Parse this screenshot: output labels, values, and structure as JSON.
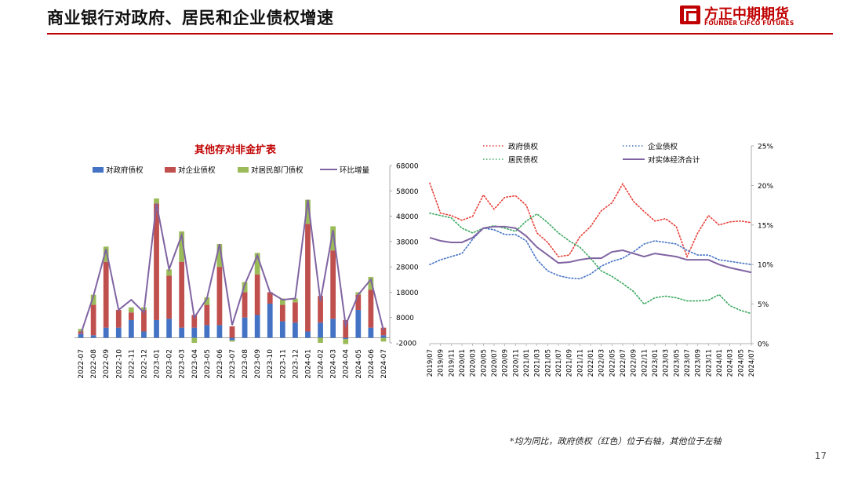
{
  "page": {
    "title": "商业银行对政府、居民和企业债权增速",
    "logo_cn": "方正中期期货",
    "logo_en": "FOUNDER CIFCO FUTURES",
    "footnote": "*均为同比，政府债权（红色）位于右轴，其他位于左轴",
    "page_number": "17"
  },
  "colors": {
    "brand": "#c00000",
    "blue": "#4472c4",
    "red": "#c0504d",
    "green": "#9bbb59",
    "purple": "#8064a2"
  },
  "chart_data": [
    {
      "type": "bar",
      "title": "其他存对非金扩表",
      "stacked": true,
      "legend_position": "top",
      "categories": [
        "2022-07",
        "2022-08",
        "2022-09",
        "2022-10",
        "2022-11",
        "2022-12",
        "2023-01",
        "2023-02",
        "2023-03",
        "2023-04",
        "2023-05",
        "2023-06",
        "2023-07",
        "2023-08",
        "2023-09",
        "2023-10",
        "2023-11",
        "2023-12",
        "2024-01",
        "2024-02",
        "2024-03",
        "2024-04",
        "2024-05",
        "2024-06",
        "2024-07"
      ],
      "ylim": [
        -2000,
        68000
      ],
      "yticks": [
        -2000,
        8000,
        18000,
        28000,
        38000,
        48000,
        58000,
        68000
      ],
      "series": [
        {
          "name": "对政府债权",
          "kind": "bar",
          "color": "#4472c4",
          "values": [
            1500,
            1000,
            4000,
            4000,
            7000,
            2500,
            7000,
            7500,
            4000,
            4000,
            5000,
            5000,
            -1000,
            8000,
            9000,
            13500,
            6500,
            6000,
            2500,
            6000,
            7500,
            -500,
            11000,
            4000,
            1000
          ]
        },
        {
          "name": "对企业债权",
          "kind": "bar",
          "color": "#c0504d",
          "values": [
            1000,
            12000,
            26000,
            7000,
            3000,
            8500,
            46000,
            17000,
            26000,
            5000,
            8000,
            23000,
            4500,
            10000,
            16000,
            4500,
            6500,
            8000,
            42500,
            10500,
            27000,
            7000,
            6000,
            15000,
            3000
          ]
        },
        {
          "name": "对居民部门债权",
          "kind": "bar",
          "color": "#9bbb59",
          "values": [
            1000,
            4000,
            6000,
            0,
            2000,
            1000,
            2000,
            2500,
            12000,
            -2000,
            3000,
            9000,
            -500,
            4000,
            8500,
            0,
            2500,
            1500,
            9500,
            -2000,
            9500,
            -2000,
            1000,
            5000,
            -1500
          ]
        },
        {
          "name": "环比增量",
          "kind": "line",
          "color": "#8064a2",
          "values": [
            1500,
            16500,
            35000,
            11000,
            15000,
            10000,
            53000,
            27000,
            40500,
            8000,
            15500,
            37000,
            5000,
            21000,
            32500,
            18000,
            15000,
            15500,
            54500,
            14500,
            42500,
            5000,
            17000,
            23000,
            3000
          ]
        }
      ]
    },
    {
      "type": "line",
      "categories": [
        "2019/07",
        "2019/09",
        "2019/11",
        "2020/01",
        "2020/03",
        "2020/05",
        "2020/07",
        "2020/09",
        "2020/11",
        "2021/01",
        "2021/03",
        "2021/05",
        "2021/07",
        "2021/09",
        "2021/11",
        "2022/01",
        "2022/03",
        "2022/05",
        "2022/07",
        "2022/09",
        "2022/11",
        "2023/01",
        "2023/03",
        "2023/05",
        "2023/07",
        "2023/09",
        "2023/11",
        "2024/01",
        "2024/03",
        "2024/05",
        "2024/07"
      ],
      "right_axis": {
        "ylim": [
          0,
          25
        ],
        "ticks": [
          "0%",
          "5%",
          "10%",
          "15%",
          "20%",
          "25%"
        ]
      },
      "legend_position": "top",
      "series": [
        {
          "name": "政府债权",
          "axis": "right",
          "style": "dotted",
          "color": "#e8403a",
          "values": [
            20.3,
            16.5,
            16.2,
            15.6,
            16.1,
            18.8,
            17.0,
            18.5,
            18.7,
            17.5,
            14.0,
            12.8,
            11.0,
            11.2,
            13.5,
            14.8,
            16.8,
            17.8,
            20.2,
            18.0,
            16.7,
            15.5,
            15.8,
            14.8,
            11.0,
            14.0,
            16.2,
            15.0,
            15.4,
            15.5,
            15.3
          ]
        },
        {
          "name": "企业债权",
          "axis": "left",
          "style": "dotted",
          "color": "#4472c4",
          "values": [
            10.0,
            10.6,
            11.0,
            11.4,
            13.2,
            14.6,
            14.4,
            13.8,
            13.8,
            13.0,
            10.6,
            9.2,
            8.6,
            8.3,
            8.2,
            8.8,
            9.8,
            10.4,
            10.8,
            11.6,
            12.6,
            13.0,
            12.8,
            12.6,
            11.8,
            11.2,
            11.2,
            10.6,
            10.4,
            10.2,
            10.0
          ]
        },
        {
          "name": "居民债权",
          "axis": "left",
          "style": "dotted",
          "color": "#3aa860",
          "values": [
            16.5,
            16.2,
            15.9,
            14.6,
            14.0,
            14.6,
            14.9,
            14.6,
            14.2,
            15.5,
            16.4,
            15.3,
            14.0,
            13.0,
            12.2,
            10.8,
            9.2,
            8.5,
            7.6,
            6.6,
            5.0,
            5.8,
            6.0,
            5.8,
            5.4,
            5.4,
            5.5,
            6.2,
            4.8,
            4.2,
            3.8
          ]
        },
        {
          "name": "对实体经济合计",
          "axis": "left",
          "style": "solid",
          "color": "#8064a2",
          "values": [
            13.4,
            13.0,
            12.8,
            12.8,
            13.4,
            14.6,
            14.8,
            14.8,
            14.6,
            13.6,
            12.2,
            11.2,
            10.2,
            10.3,
            10.6,
            10.8,
            10.8,
            11.6,
            11.8,
            11.4,
            11.0,
            11.4,
            11.2,
            11.0,
            10.6,
            10.6,
            10.6,
            10.0,
            9.6,
            9.3,
            9.0
          ]
        }
      ]
    }
  ]
}
